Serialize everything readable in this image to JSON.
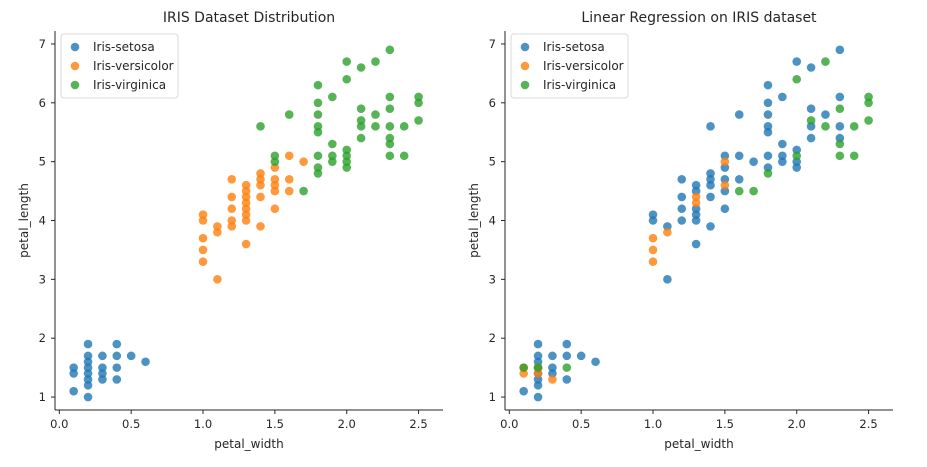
{
  "colors": {
    "Iris-setosa": "#1f77b4",
    "Iris-versicolor": "#ff7f0e",
    "Iris-virginica": "#2ca02c"
  },
  "chart_data": [
    {
      "type": "scatter",
      "title": "IRIS Dataset Distribution",
      "xlabel": "petal_width",
      "ylabel": "petal_length",
      "xlim": [
        -0.03,
        2.67
      ],
      "ylim": [
        0.78,
        7.22
      ],
      "xticks": [
        0.0,
        0.5,
        1.0,
        1.5,
        2.0,
        2.5
      ],
      "xtick_labels": [
        "0.0",
        "0.5",
        "1.0",
        "1.5",
        "2.0",
        "2.5"
      ],
      "yticks": [
        1,
        2,
        3,
        4,
        5,
        6,
        7
      ],
      "ytick_labels": [
        "1",
        "2",
        "3",
        "4",
        "5",
        "6",
        "7"
      ],
      "grid": false,
      "legend_position": "top-left",
      "series": [
        {
          "name": "Iris-setosa",
          "points": [
            [
              0.1,
              1.1
            ],
            [
              0.1,
              1.4
            ],
            [
              0.1,
              1.5
            ],
            [
              0.2,
              1.0
            ],
            [
              0.2,
              1.2
            ],
            [
              0.2,
              1.3
            ],
            [
              0.2,
              1.4
            ],
            [
              0.2,
              1.5
            ],
            [
              0.2,
              1.6
            ],
            [
              0.2,
              1.7
            ],
            [
              0.2,
              1.9
            ],
            [
              0.3,
              1.3
            ],
            [
              0.3,
              1.4
            ],
            [
              0.3,
              1.5
            ],
            [
              0.3,
              1.7
            ],
            [
              0.4,
              1.3
            ],
            [
              0.4,
              1.5
            ],
            [
              0.4,
              1.7
            ],
            [
              0.4,
              1.9
            ],
            [
              0.5,
              1.7
            ],
            [
              0.6,
              1.6
            ]
          ]
        },
        {
          "name": "Iris-versicolor",
          "points": [
            [
              1.0,
              3.3
            ],
            [
              1.0,
              3.5
            ],
            [
              1.0,
              3.7
            ],
            [
              1.0,
              4.0
            ],
            [
              1.0,
              4.1
            ],
            [
              1.1,
              3.0
            ],
            [
              1.1,
              3.8
            ],
            [
              1.1,
              3.9
            ],
            [
              1.2,
              3.9
            ],
            [
              1.2,
              4.0
            ],
            [
              1.2,
              4.2
            ],
            [
              1.2,
              4.4
            ],
            [
              1.2,
              4.7
            ],
            [
              1.3,
              3.6
            ],
            [
              1.3,
              4.0
            ],
            [
              1.3,
              4.1
            ],
            [
              1.3,
              4.2
            ],
            [
              1.3,
              4.3
            ],
            [
              1.3,
              4.4
            ],
            [
              1.3,
              4.5
            ],
            [
              1.3,
              4.6
            ],
            [
              1.4,
              3.9
            ],
            [
              1.4,
              4.4
            ],
            [
              1.4,
              4.6
            ],
            [
              1.4,
              4.7
            ],
            [
              1.4,
              4.8
            ],
            [
              1.5,
              4.2
            ],
            [
              1.5,
              4.5
            ],
            [
              1.5,
              4.6
            ],
            [
              1.5,
              4.7
            ],
            [
              1.5,
              4.9
            ],
            [
              1.6,
              4.5
            ],
            [
              1.6,
              4.7
            ],
            [
              1.6,
              5.1
            ],
            [
              1.7,
              5.0
            ]
          ]
        },
        {
          "name": "Iris-virginica",
          "points": [
            [
              1.4,
              5.6
            ],
            [
              1.5,
              5.0
            ],
            [
              1.5,
              5.1
            ],
            [
              1.6,
              5.8
            ],
            [
              1.7,
              4.5
            ],
            [
              1.8,
              4.8
            ],
            [
              1.8,
              4.9
            ],
            [
              1.8,
              5.1
            ],
            [
              1.8,
              5.5
            ],
            [
              1.8,
              5.6
            ],
            [
              1.8,
              5.8
            ],
            [
              1.8,
              6.0
            ],
            [
              1.8,
              6.3
            ],
            [
              1.9,
              5.0
            ],
            [
              1.9,
              5.1
            ],
            [
              1.9,
              5.3
            ],
            [
              1.9,
              6.1
            ],
            [
              2.0,
              4.9
            ],
            [
              2.0,
              5.0
            ],
            [
              2.0,
              5.1
            ],
            [
              2.0,
              5.2
            ],
            [
              2.0,
              6.4
            ],
            [
              2.0,
              6.7
            ],
            [
              2.1,
              5.4
            ],
            [
              2.1,
              5.6
            ],
            [
              2.1,
              5.7
            ],
            [
              2.1,
              5.9
            ],
            [
              2.1,
              6.6
            ],
            [
              2.2,
              5.6
            ],
            [
              2.2,
              5.8
            ],
            [
              2.2,
              6.7
            ],
            [
              2.3,
              5.1
            ],
            [
              2.3,
              5.3
            ],
            [
              2.3,
              5.4
            ],
            [
              2.3,
              5.6
            ],
            [
              2.3,
              5.9
            ],
            [
              2.3,
              6.1
            ],
            [
              2.3,
              6.9
            ],
            [
              2.4,
              5.1
            ],
            [
              2.4,
              5.6
            ],
            [
              2.5,
              5.7
            ],
            [
              2.5,
              6.0
            ],
            [
              2.5,
              6.1
            ]
          ]
        }
      ]
    },
    {
      "type": "scatter",
      "title": "Linear Regression on IRIS dataset",
      "xlabel": "petal_width",
      "ylabel": "petal_length",
      "xlim": [
        -0.03,
        2.67
      ],
      "ylim": [
        0.78,
        7.22
      ],
      "xticks": [
        0.0,
        0.5,
        1.0,
        1.5,
        2.0,
        2.5
      ],
      "xtick_labels": [
        "0.0",
        "0.5",
        "1.0",
        "1.5",
        "2.0",
        "2.5"
      ],
      "yticks": [
        1,
        2,
        3,
        4,
        5,
        6,
        7
      ],
      "ytick_labels": [
        "1",
        "2",
        "3",
        "4",
        "5",
        "6",
        "7"
      ],
      "grid": false,
      "legend_position": "top-left",
      "series": [
        {
          "name": "Iris-setosa",
          "points": [
            [
              0.1,
              1.1
            ],
            [
              0.2,
              1.0
            ],
            [
              0.2,
              1.2
            ],
            [
              0.2,
              1.3
            ],
            [
              0.2,
              1.4
            ],
            [
              0.2,
              1.5
            ],
            [
              0.2,
              1.6
            ],
            [
              0.2,
              1.7
            ],
            [
              0.2,
              1.9
            ],
            [
              0.3,
              1.4
            ],
            [
              0.3,
              1.5
            ],
            [
              0.3,
              1.7
            ],
            [
              0.4,
              1.3
            ],
            [
              0.4,
              1.7
            ],
            [
              0.4,
              1.9
            ],
            [
              0.5,
              1.7
            ],
            [
              0.6,
              1.6
            ],
            [
              1.0,
              4.0
            ],
            [
              1.0,
              4.1
            ],
            [
              1.1,
              3.0
            ],
            [
              1.1,
              3.9
            ],
            [
              1.2,
              4.0
            ],
            [
              1.2,
              4.2
            ],
            [
              1.2,
              4.4
            ],
            [
              1.2,
              4.7
            ],
            [
              1.3,
              3.6
            ],
            [
              1.3,
              4.0
            ],
            [
              1.3,
              4.1
            ],
            [
              1.3,
              4.2
            ],
            [
              1.3,
              4.5
            ],
            [
              1.3,
              4.6
            ],
            [
              1.4,
              3.9
            ],
            [
              1.4,
              4.4
            ],
            [
              1.4,
              4.6
            ],
            [
              1.4,
              4.7
            ],
            [
              1.4,
              4.8
            ],
            [
              1.4,
              5.6
            ],
            [
              1.5,
              4.2
            ],
            [
              1.5,
              4.5
            ],
            [
              1.5,
              4.7
            ],
            [
              1.5,
              4.9
            ],
            [
              1.5,
              5.1
            ],
            [
              1.6,
              4.7
            ],
            [
              1.6,
              5.1
            ],
            [
              1.6,
              5.8
            ],
            [
              1.7,
              5.0
            ],
            [
              1.8,
              4.9
            ],
            [
              1.8,
              5.1
            ],
            [
              1.8,
              5.5
            ],
            [
              1.8,
              5.6
            ],
            [
              1.8,
              5.8
            ],
            [
              1.8,
              6.0
            ],
            [
              1.8,
              6.3
            ],
            [
              1.9,
              5.0
            ],
            [
              1.9,
              5.1
            ],
            [
              1.9,
              5.3
            ],
            [
              1.9,
              6.1
            ],
            [
              2.0,
              4.9
            ],
            [
              2.0,
              5.0
            ],
            [
              2.0,
              5.2
            ],
            [
              2.0,
              6.7
            ],
            [
              2.1,
              5.4
            ],
            [
              2.1,
              5.6
            ],
            [
              2.1,
              5.9
            ],
            [
              2.1,
              6.6
            ],
            [
              2.2,
              5.8
            ],
            [
              2.3,
              5.4
            ],
            [
              2.3,
              5.6
            ],
            [
              2.3,
              6.1
            ],
            [
              2.3,
              6.9
            ]
          ]
        },
        {
          "name": "Iris-versicolor",
          "points": [
            [
              0.1,
              1.4
            ],
            [
              0.1,
              1.5
            ],
            [
              0.2,
              1.4
            ],
            [
              0.2,
              1.5
            ],
            [
              0.3,
              1.3
            ],
            [
              1.0,
              3.3
            ],
            [
              1.0,
              3.5
            ],
            [
              1.0,
              3.7
            ],
            [
              1.1,
              3.8
            ],
            [
              1.3,
              4.3
            ],
            [
              1.3,
              4.4
            ],
            [
              1.5,
              4.6
            ],
            [
              1.5,
              5.0
            ]
          ]
        },
        {
          "name": "Iris-virginica",
          "points": [
            [
              0.1,
              1.5
            ],
            [
              0.2,
              1.5
            ],
            [
              0.4,
              1.5
            ],
            [
              1.6,
              4.5
            ],
            [
              1.7,
              4.5
            ],
            [
              1.8,
              4.8
            ],
            [
              2.0,
              5.1
            ],
            [
              2.0,
              6.4
            ],
            [
              2.1,
              5.7
            ],
            [
              2.2,
              5.6
            ],
            [
              2.2,
              6.7
            ],
            [
              2.3,
              5.1
            ],
            [
              2.3,
              5.3
            ],
            [
              2.3,
              5.9
            ],
            [
              2.4,
              5.1
            ],
            [
              2.4,
              5.6
            ],
            [
              2.5,
              5.7
            ],
            [
              2.5,
              6.0
            ],
            [
              2.5,
              6.1
            ]
          ]
        }
      ]
    }
  ]
}
